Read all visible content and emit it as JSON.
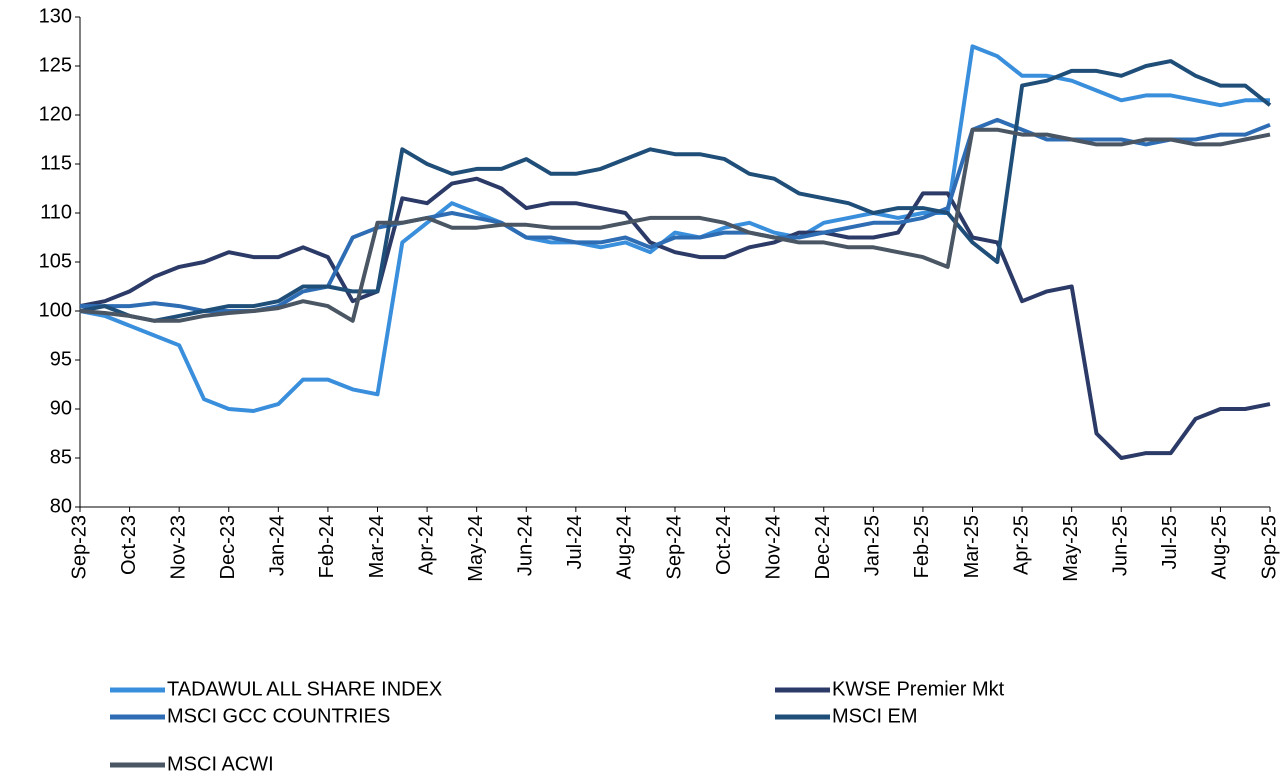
{
  "chart_data": {
    "type": "line",
    "categories": [
      "Sep-23",
      null,
      "Oct-23",
      null,
      "Nov-23",
      null,
      "Dec-23",
      null,
      "Jan-24",
      null,
      "Feb-24",
      null,
      "Mar-24",
      null,
      "Apr-24",
      null,
      "May-24",
      null,
      "Jun-24",
      null,
      "Jul-24",
      null,
      "Aug-24",
      null,
      "Sep-24",
      null,
      "Oct-24",
      null,
      "Nov-24",
      null,
      "Dec-24",
      null,
      "Jan-25",
      null,
      "Feb-25",
      null,
      "Mar-25",
      null,
      "Apr-25",
      null,
      "May-25",
      null,
      "Jun-25",
      null,
      "Jul-25",
      null,
      "Aug-25",
      null,
      "Sep-25"
    ],
    "series": [
      {
        "name": "TADAWUL ALL SHARE INDEX",
        "color": "#3a8fdd",
        "values": [
          100,
          99.5,
          98.5,
          97.5,
          96.5,
          91,
          90,
          89.8,
          90.5,
          93,
          93,
          92,
          91.5,
          107,
          109,
          111,
          110,
          109,
          107.5,
          107,
          107,
          106.5,
          107,
          106,
          108,
          107.5,
          108.5,
          109,
          108,
          107.5,
          109,
          109.5,
          110,
          109.5,
          110,
          110,
          127,
          126,
          124,
          124,
          123.5,
          122.5,
          121.5,
          122,
          122,
          121.5,
          121,
          121.5,
          121.5
        ]
      },
      {
        "name": "KWSE Premier Mkt",
        "color": "#2b3a67",
        "values": [
          100.5,
          101,
          102,
          103.5,
          104.5,
          105,
          106,
          105.5,
          105.5,
          106.5,
          105.5,
          101,
          102,
          111.5,
          111,
          113,
          113.5,
          112.5,
          110.5,
          111,
          111,
          110.5,
          110,
          107,
          106,
          105.5,
          105.5,
          106.5,
          107,
          108,
          108,
          107.5,
          107.5,
          108,
          112,
          112,
          107.5,
          107,
          101,
          102,
          102.5,
          87.5,
          85,
          85.5,
          85.5,
          89,
          90,
          90,
          90.5
        ]
      },
      {
        "name": "MSCI GCC COUNTRIES",
        "color": "#2e6db4",
        "values": [
          100.5,
          100.5,
          100.5,
          100.8,
          100.5,
          100,
          100,
          100,
          100.5,
          102,
          102.5,
          107.5,
          108.5,
          109,
          109.5,
          110,
          109.5,
          109,
          107.5,
          107.5,
          107,
          107,
          107.5,
          106.5,
          107.5,
          107.5,
          108,
          108,
          107.5,
          107.5,
          108,
          108.5,
          109,
          109,
          109.5,
          110.5,
          118.5,
          119.5,
          118.5,
          117.5,
          117.5,
          117.5,
          117.5,
          117,
          117.5,
          117.5,
          118,
          118,
          119
        ]
      },
      {
        "name": "MSCI EM",
        "color": "#1f4e79",
        "values": [
          100,
          100.5,
          99.5,
          99,
          99.5,
          100,
          100.5,
          100.5,
          101,
          102.5,
          102.5,
          102,
          102,
          116.5,
          115,
          114,
          114.5,
          114.5,
          115.5,
          114,
          114,
          114.5,
          115.5,
          116.5,
          116,
          116,
          115.5,
          114,
          113.5,
          112,
          111.5,
          111,
          110,
          110.5,
          110.5,
          110,
          107,
          105,
          123,
          123.5,
          124.5,
          124.5,
          124,
          125,
          125.5,
          124,
          123,
          123,
          121
        ]
      },
      {
        "name": "MSCI ACWI",
        "color": "#4a5663",
        "values": [
          100,
          99.8,
          99.5,
          99,
          99,
          99.5,
          99.8,
          100,
          100.3,
          101,
          100.5,
          99,
          109,
          109,
          109.5,
          108.5,
          108.5,
          108.8,
          108.8,
          108.5,
          108.5,
          108.5,
          109,
          109.5,
          109.5,
          109.5,
          109,
          108,
          107.5,
          107,
          107,
          106.5,
          106.5,
          106,
          105.5,
          104.5,
          118.5,
          118.5,
          118,
          118,
          117.5,
          117,
          117,
          117.5,
          117.5,
          117,
          117,
          117.5,
          118
        ]
      }
    ],
    "ylim": [
      80,
      130
    ],
    "yticks": [
      80,
      85,
      90,
      95,
      100,
      105,
      110,
      115,
      120,
      125,
      130
    ],
    "grid": false
  }
}
